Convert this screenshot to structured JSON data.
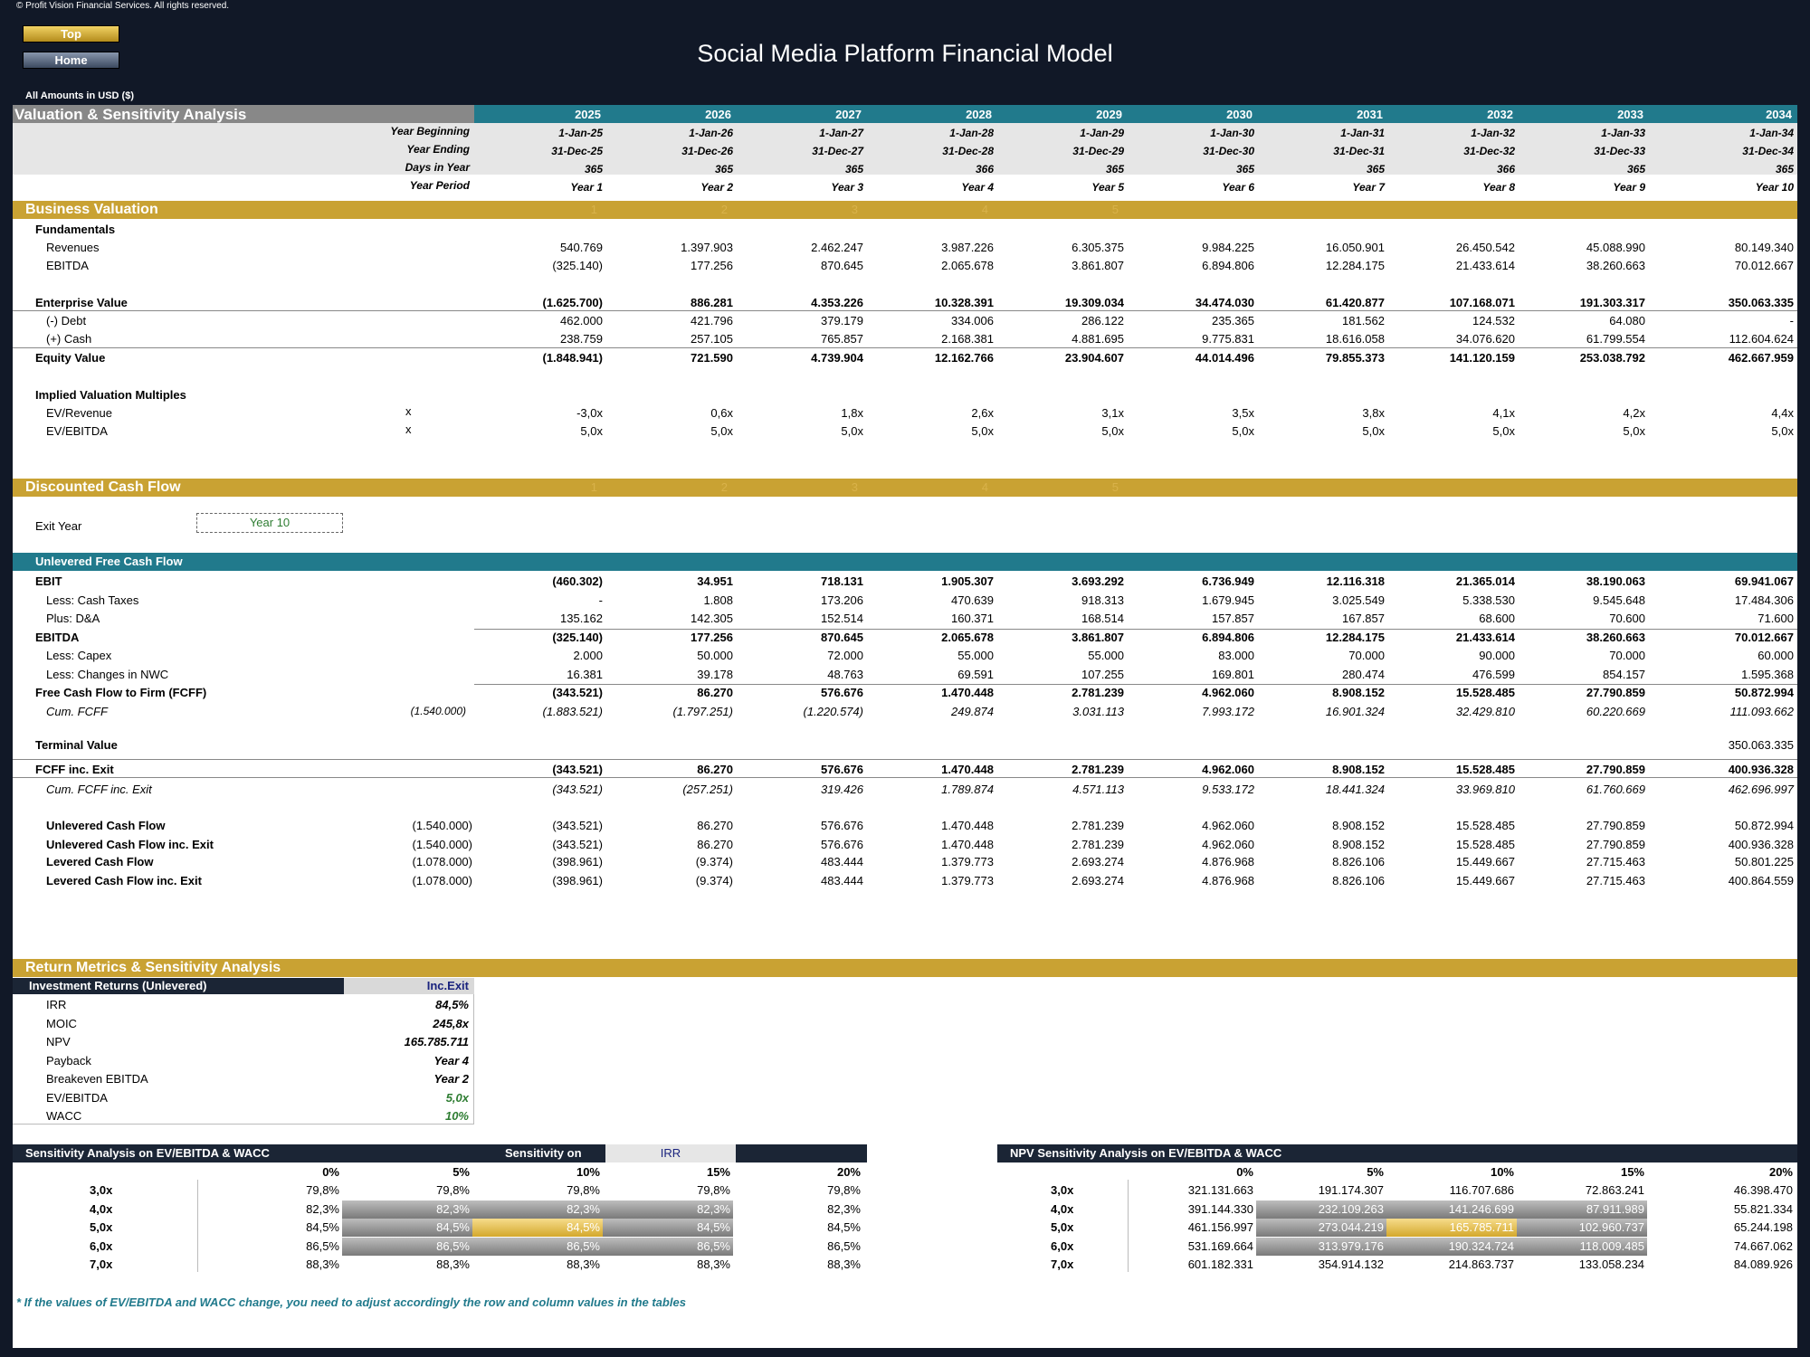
{
  "copyright": "© Profit Vision Financial Services. All rights reserved.",
  "nav": {
    "top": "Top",
    "home": "Home"
  },
  "title": "Social Media Platform Financial Model",
  "currency": "All Amounts in  USD ($)",
  "section_title": "Valuation & Sensitivity Analysis",
  "years": [
    "2025",
    "2026",
    "2027",
    "2028",
    "2029",
    "2030",
    "2031",
    "2032",
    "2033",
    "2034"
  ],
  "timeline": [
    {
      "label": "Year Beginning",
      "values": [
        "1-Jan-25",
        "1-Jan-26",
        "1-Jan-27",
        "1-Jan-28",
        "1-Jan-29",
        "1-Jan-30",
        "1-Jan-31",
        "1-Jan-32",
        "1-Jan-33",
        "1-Jan-34"
      ]
    },
    {
      "label": "Year Ending",
      "values": [
        "31-Dec-25",
        "31-Dec-26",
        "31-Dec-27",
        "31-Dec-28",
        "31-Dec-29",
        "31-Dec-30",
        "31-Dec-31",
        "31-Dec-32",
        "31-Dec-33",
        "31-Dec-34"
      ]
    },
    {
      "label": "Days in Year",
      "values": [
        "365",
        "365",
        "365",
        "366",
        "365",
        "365",
        "365",
        "366",
        "365",
        "365"
      ]
    },
    {
      "label": "Year Period",
      "values": [
        "Year 1",
        "Year 2",
        "Year 3",
        "Year 4",
        "Year 5",
        "Year 6",
        "Year 7",
        "Year 8",
        "Year 9",
        "Year 10"
      ]
    }
  ],
  "business_valuation": {
    "title": "Business Valuation",
    "faint": [
      "1",
      "2",
      "3",
      "4",
      "5"
    ],
    "fundamentals": "Fundamentals",
    "rows": [
      {
        "label": "Revenues",
        "values": [
          "540.769",
          "1.397.903",
          "2.462.247",
          "3.987.226",
          "6.305.375",
          "9.984.225",
          "16.050.901",
          "26.450.542",
          "45.088.990",
          "80.149.340"
        ]
      },
      {
        "label": "EBITDA",
        "values": [
          "(325.140)",
          "177.256",
          "870.645",
          "2.065.678",
          "3.861.807",
          "6.894.806",
          "12.284.175",
          "21.433.614",
          "38.260.663",
          "70.012.667"
        ]
      }
    ],
    "ev": {
      "label": "Enterprise Value",
      "values": [
        "(1.625.700)",
        "886.281",
        "4.353.226",
        "10.328.391",
        "19.309.034",
        "34.474.030",
        "61.420.877",
        "107.168.071",
        "191.303.317",
        "350.063.335"
      ]
    },
    "debt": {
      "label": "(-) Debt",
      "values": [
        "462.000",
        "421.796",
        "379.179",
        "334.006",
        "286.122",
        "235.365",
        "181.562",
        "124.532",
        "64.080",
        "-"
      ]
    },
    "cash": {
      "label": "(+) Cash",
      "values": [
        "238.759",
        "257.105",
        "765.857",
        "2.168.381",
        "4.881.695",
        "9.775.831",
        "18.616.058",
        "34.076.620",
        "61.799.554",
        "112.604.624"
      ]
    },
    "equity": {
      "label": "Equity Value",
      "values": [
        "(1.848.941)",
        "721.590",
        "4.739.904",
        "12.162.766",
        "23.904.607",
        "44.014.496",
        "79.855.373",
        "141.120.159",
        "253.038.792",
        "462.667.959"
      ]
    },
    "multiples_title": "Implied Valuation Multiples",
    "multiples": [
      {
        "label": "EV/Revenue",
        "unit": "x",
        "values": [
          "-3,0x",
          "0,6x",
          "1,8x",
          "2,6x",
          "3,1x",
          "3,5x",
          "3,8x",
          "4,1x",
          "4,2x",
          "4,4x"
        ]
      },
      {
        "label": "EV/EBITDA",
        "unit": "x",
        "values": [
          "5,0x",
          "5,0x",
          "5,0x",
          "5,0x",
          "5,0x",
          "5,0x",
          "5,0x",
          "5,0x",
          "5,0x",
          "5,0x"
        ]
      }
    ]
  },
  "dcf": {
    "title": "Discounted Cash Flow",
    "faint": [
      "1",
      "2",
      "3",
      "4",
      "5"
    ],
    "exit_label": "Exit Year",
    "exit_value": "Year 10",
    "ufcf_title": "Unlevered Free Cash Flow",
    "rows": [
      {
        "label": "EBIT",
        "pre": "",
        "values": [
          "(460.302)",
          "34.951",
          "718.131",
          "1.905.307",
          "3.693.292",
          "6.736.949",
          "12.116.318",
          "21.365.014",
          "38.190.063",
          "69.941.067"
        ],
        "style": "b"
      },
      {
        "label": "Less: Cash Taxes",
        "pre": "",
        "values": [
          "-",
          "1.808",
          "173.206",
          "470.639",
          "918.313",
          "1.679.945",
          "3.025.549",
          "5.338.530",
          "9.545.648",
          "17.484.306"
        ],
        "style": "ind"
      },
      {
        "label": "Plus: D&A",
        "pre": "",
        "values": [
          "135.162",
          "142.305",
          "152.514",
          "160.371",
          "168.514",
          "157.857",
          "167.857",
          "68.600",
          "70.600",
          "71.600"
        ],
        "style": "ind"
      },
      {
        "label": "EBITDA",
        "pre": "",
        "values": [
          "(325.140)",
          "177.256",
          "870.645",
          "2.065.678",
          "3.861.807",
          "6.894.806",
          "12.284.175",
          "21.433.614",
          "38.260.663",
          "70.012.667"
        ],
        "style": "b"
      },
      {
        "label": "Less: Capex",
        "pre": "",
        "values": [
          "2.000",
          "50.000",
          "72.000",
          "55.000",
          "55.000",
          "83.000",
          "70.000",
          "90.000",
          "70.000",
          "60.000"
        ],
        "style": "ind"
      },
      {
        "label": "Less: Changes in NWC",
        "pre": "",
        "values": [
          "16.381",
          "39.178",
          "48.763",
          "69.591",
          "107.255",
          "169.801",
          "280.474",
          "476.599",
          "854.157",
          "1.595.368"
        ],
        "style": "ind"
      },
      {
        "label": "Free Cash Flow to Firm (FCFF)",
        "pre": "",
        "values": [
          "(343.521)",
          "86.270",
          "576.676",
          "1.470.448",
          "2.781.239",
          "4.962.060",
          "8.908.152",
          "15.528.485",
          "27.790.859",
          "50.872.994"
        ],
        "style": "b"
      },
      {
        "label": "Cum. FCFF",
        "pre": "(1.540.000)",
        "values": [
          "(1.883.521)",
          "(1.797.251)",
          "(1.220.574)",
          "249.874",
          "3.031.113",
          "7.993.172",
          "16.901.324",
          "32.429.810",
          "60.220.669",
          "111.093.662"
        ],
        "style": "it"
      }
    ],
    "terminal": {
      "label": "Terminal Value",
      "value": "350.063.335"
    },
    "fcff_exit": {
      "label": "FCFF inc. Exit",
      "values": [
        "(343.521)",
        "86.270",
        "576.676",
        "1.470.448",
        "2.781.239",
        "4.962.060",
        "8.908.152",
        "15.528.485",
        "27.790.859",
        "400.936.328"
      ]
    },
    "cum_exit": {
      "label": "Cum. FCFF inc. Exit",
      "values": [
        "(343.521)",
        "(257.251)",
        "319.426",
        "1.789.874",
        "4.571.113",
        "9.533.172",
        "18.441.324",
        "33.969.810",
        "61.760.669",
        "462.696.997"
      ]
    },
    "flows": [
      {
        "label": "Unlevered Cash Flow",
        "pre": "(1.540.000)",
        "values": [
          "(343.521)",
          "86.270",
          "576.676",
          "1.470.448",
          "2.781.239",
          "4.962.060",
          "8.908.152",
          "15.528.485",
          "27.790.859",
          "50.872.994"
        ]
      },
      {
        "label": "Unlevered Cash Flow inc. Exit",
        "pre": "(1.540.000)",
        "values": [
          "(343.521)",
          "86.270",
          "576.676",
          "1.470.448",
          "2.781.239",
          "4.962.060",
          "8.908.152",
          "15.528.485",
          "27.790.859",
          "400.936.328"
        ]
      },
      {
        "label": "Levered Cash Flow",
        "pre": "(1.078.000)",
        "values": [
          "(398.961)",
          "(9.374)",
          "483.444",
          "1.379.773",
          "2.693.274",
          "4.876.968",
          "8.826.106",
          "15.449.667",
          "27.715.463",
          "50.801.225"
        ]
      },
      {
        "label": "Levered Cash Flow inc. Exit",
        "pre": "(1.078.000)",
        "values": [
          "(398.961)",
          "(9.374)",
          "483.444",
          "1.379.773",
          "2.693.274",
          "4.876.968",
          "8.826.106",
          "15.449.667",
          "27.715.463",
          "400.864.559"
        ]
      }
    ]
  },
  "returns": {
    "title": "Return Metrics & Sensitivity Analysis",
    "table_title": "Investment Returns (Unlevered)",
    "col": "Inc.Exit",
    "rows": [
      {
        "label": "IRR",
        "value": "84,5%",
        "color": "#000"
      },
      {
        "label": "MOIC",
        "value": "245,8x",
        "color": "#000"
      },
      {
        "label": "NPV",
        "value": "165.785.711",
        "color": "#000"
      },
      {
        "label": "Payback",
        "value": "Year 4",
        "color": "#000"
      },
      {
        "label": "Breakeven EBITDA",
        "value": "Year 2",
        "color": "#000"
      },
      {
        "label": "EV/EBITDA",
        "value": "5,0x",
        "color": "#2e7d32"
      },
      {
        "label": "WACC",
        "value": "10%",
        "color": "#2e7d32"
      }
    ]
  },
  "sens1": {
    "title": "Sensitivity Analysis on EV/EBITDA & WACC",
    "on_label": "Sensitivity on",
    "on_value": "IRR",
    "cols": [
      "0%",
      "5%",
      "10%",
      "15%",
      "20%"
    ],
    "rows": [
      {
        "label": "3,0x",
        "values": [
          "79,8%",
          "79,8%",
          "79,8%",
          "79,8%",
          "79,8%"
        ]
      },
      {
        "label": "4,0x",
        "values": [
          "82,3%",
          "82,3%",
          "82,3%",
          "82,3%",
          "82,3%"
        ]
      },
      {
        "label": "5,0x",
        "values": [
          "84,5%",
          "84,5%",
          "84,5%",
          "84,5%",
          "84,5%"
        ]
      },
      {
        "label": "6,0x",
        "values": [
          "86,5%",
          "86,5%",
          "86,5%",
          "86,5%",
          "86,5%"
        ]
      },
      {
        "label": "7,0x",
        "values": [
          "88,3%",
          "88,3%",
          "88,3%",
          "88,3%",
          "88,3%"
        ]
      }
    ]
  },
  "sens2": {
    "title": "NPV Sensitivity Analysis on EV/EBITDA & WACC",
    "cols": [
      "0%",
      "5%",
      "10%",
      "15%",
      "20%"
    ],
    "rows": [
      {
        "label": "3,0x",
        "values": [
          "321.131.663",
          "191.174.307",
          "116.707.686",
          "72.863.241",
          "46.398.470"
        ]
      },
      {
        "label": "4,0x",
        "values": [
          "391.144.330",
          "232.109.263",
          "141.246.699",
          "87.911.989",
          "55.821.334"
        ]
      },
      {
        "label": "5,0x",
        "values": [
          "461.156.997",
          "273.044.219",
          "165.785.711",
          "102.960.737",
          "65.244.198"
        ]
      },
      {
        "label": "6,0x",
        "values": [
          "531.169.664",
          "313.979.176",
          "190.324.724",
          "118.009.485",
          "74.667.062"
        ]
      },
      {
        "label": "7,0x",
        "values": [
          "601.182.331",
          "354.914.132",
          "214.863.737",
          "133.058.234",
          "84.089.926"
        ]
      }
    ]
  },
  "footnote": "* If the values of EV/EBITDA and WACC change, you need to adjust accordingly the row and column values in the tables",
  "colors": {
    "teal": "#217a8c",
    "gold": "#c9a233",
    "navy": "#1b2535",
    "grey": "#888888"
  }
}
